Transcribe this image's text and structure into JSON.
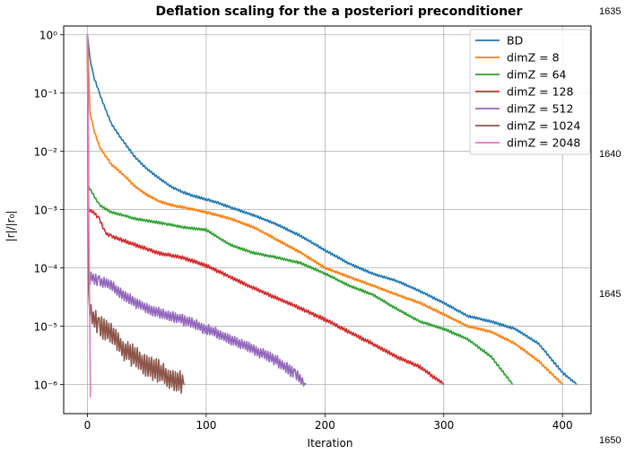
{
  "chart_data": {
    "type": "line",
    "title": "Deflation scaling for the a posteriori preconditioner",
    "xlabel": "Iteration",
    "ylabel": "|r|/|r₀|",
    "xlim": [
      -20,
      424
    ],
    "ylim_log10": [
      -6.5,
      0.15
    ],
    "yscale": "log",
    "xticks": [
      0,
      100,
      200,
      300,
      400
    ],
    "xtick_labels": [
      "0",
      "100",
      "200",
      "300",
      "400"
    ],
    "yticks_exp": [
      0,
      -1,
      -2,
      -3,
      -4,
      -5,
      -6
    ],
    "ytick_labels": [
      "10⁰",
      "10⁻¹",
      "10⁻²",
      "10⁻³",
      "10⁻⁴",
      "10⁻⁵",
      "10⁻⁶"
    ],
    "grid": true,
    "legend_position": "top-right",
    "series": [
      {
        "name": "BD",
        "color": "#1f77b4",
        "points": [
          [
            0,
            1.0
          ],
          [
            2,
            0.4
          ],
          [
            5,
            0.2
          ],
          [
            10,
            0.1
          ],
          [
            20,
            0.03
          ],
          [
            30,
            0.015
          ],
          [
            40,
            0.008
          ],
          [
            50,
            0.005
          ],
          [
            60,
            0.0035
          ],
          [
            70,
            0.0025
          ],
          [
            80,
            0.002
          ],
          [
            90,
            0.0017
          ],
          [
            100,
            0.0015
          ],
          [
            110,
            0.0013
          ],
          [
            120,
            0.0011
          ],
          [
            140,
            0.0008
          ],
          [
            160,
            0.00055
          ],
          [
            180,
            0.00035
          ],
          [
            200,
            0.0002
          ],
          [
            220,
            0.00012
          ],
          [
            240,
            8e-05
          ],
          [
            260,
            6e-05
          ],
          [
            280,
            4e-05
          ],
          [
            300,
            2.5e-05
          ],
          [
            320,
            1.5e-05
          ],
          [
            340,
            1.2e-05
          ],
          [
            360,
            9e-06
          ],
          [
            380,
            5e-06
          ],
          [
            400,
            1.6e-06
          ],
          [
            412,
            1e-06
          ]
        ],
        "noise": 0.02,
        "seed": 1
      },
      {
        "name": "dimZ = 8",
        "color": "#ff7f0e",
        "points": [
          [
            0,
            1.0
          ],
          [
            2,
            0.05
          ],
          [
            5,
            0.025
          ],
          [
            10,
            0.012
          ],
          [
            20,
            0.006
          ],
          [
            30,
            0.004
          ],
          [
            40,
            0.0025
          ],
          [
            50,
            0.0018
          ],
          [
            60,
            0.0014
          ],
          [
            70,
            0.0012
          ],
          [
            80,
            0.0011
          ],
          [
            90,
            0.001
          ],
          [
            100,
            0.0009
          ],
          [
            120,
            0.0007
          ],
          [
            140,
            0.0005
          ],
          [
            160,
            0.0003
          ],
          [
            180,
            0.00018
          ],
          [
            200,
            0.0001
          ],
          [
            220,
            7e-05
          ],
          [
            240,
            5e-05
          ],
          [
            260,
            3.5e-05
          ],
          [
            280,
            2.5e-05
          ],
          [
            300,
            1.6e-05
          ],
          [
            320,
            1e-05
          ],
          [
            340,
            8e-06
          ],
          [
            360,
            5e-06
          ],
          [
            380,
            2.5e-06
          ],
          [
            400,
            1e-06
          ]
        ],
        "noise": 0.02,
        "seed": 2
      },
      {
        "name": "dimZ = 64",
        "color": "#2ca02c",
        "points": [
          [
            0,
            1.0
          ],
          [
            1,
            0.0025
          ],
          [
            5,
            0.0018
          ],
          [
            10,
            0.0012
          ],
          [
            20,
            0.0009
          ],
          [
            30,
            0.0008
          ],
          [
            40,
            0.0007
          ],
          [
            60,
            0.0006
          ],
          [
            80,
            0.0005
          ],
          [
            100,
            0.00045
          ],
          [
            120,
            0.00025
          ],
          [
            140,
            0.00018
          ],
          [
            160,
            0.00015
          ],
          [
            180,
            0.00012
          ],
          [
            200,
            8e-05
          ],
          [
            220,
            5e-05
          ],
          [
            240,
            3.5e-05
          ],
          [
            260,
            2e-05
          ],
          [
            280,
            1.2e-05
          ],
          [
            300,
            9e-06
          ],
          [
            320,
            6e-06
          ],
          [
            340,
            3e-06
          ],
          [
            358,
            1e-06
          ]
        ],
        "noise": 0.02,
        "seed": 3
      },
      {
        "name": "dimZ = 128",
        "color": "#d62728",
        "points": [
          [
            0,
            1.0
          ],
          [
            1,
            0.001
          ],
          [
            5,
            0.0009
          ],
          [
            10,
            0.0007
          ],
          [
            15,
            0.0004
          ],
          [
            20,
            0.00035
          ],
          [
            40,
            0.00025
          ],
          [
            60,
            0.00018
          ],
          [
            80,
            0.00015
          ],
          [
            100,
            0.00011
          ],
          [
            120,
            7e-05
          ],
          [
            140,
            4.5e-05
          ],
          [
            160,
            3e-05
          ],
          [
            180,
            2e-05
          ],
          [
            200,
            1.3e-05
          ],
          [
            220,
            8e-06
          ],
          [
            240,
            5e-06
          ],
          [
            260,
            3e-06
          ],
          [
            280,
            2e-06
          ],
          [
            300,
            1e-06
          ]
        ],
        "noise": 0.03,
        "seed": 4
      },
      {
        "name": "dimZ = 512",
        "color": "#9467bd",
        "points": [
          [
            0,
            1.0
          ],
          [
            1,
            5e-05
          ],
          [
            3,
            7e-05
          ],
          [
            10,
            6e-05
          ],
          [
            20,
            5e-05
          ],
          [
            30,
            3.5e-05
          ],
          [
            40,
            2.5e-05
          ],
          [
            60,
            1.7e-05
          ],
          [
            80,
            1.3e-05
          ],
          [
            100,
            9e-06
          ],
          [
            120,
            6e-06
          ],
          [
            140,
            4e-06
          ],
          [
            160,
            2.5e-06
          ],
          [
            175,
            1.5e-06
          ],
          [
            184,
            1e-06
          ]
        ],
        "noise": 0.09,
        "seed": 5
      },
      {
        "name": "dimZ = 1024",
        "color": "#8c564b",
        "points": [
          [
            0,
            1.0
          ],
          [
            1,
            3e-05
          ],
          [
            3,
            1.5e-05
          ],
          [
            10,
            1e-05
          ],
          [
            20,
            8e-06
          ],
          [
            30,
            4e-06
          ],
          [
            40,
            3e-06
          ],
          [
            50,
            2e-06
          ],
          [
            60,
            1.7e-06
          ],
          [
            70,
            1.3e-06
          ],
          [
            82,
            1e-06
          ]
        ],
        "noise": 0.18,
        "seed": 6
      },
      {
        "name": "dimZ = 2048",
        "color": "#e377c2",
        "points": [
          [
            0,
            1.0
          ],
          [
            1,
            0.001
          ],
          [
            2,
            1e-05
          ],
          [
            2.5,
            6e-07
          ]
        ],
        "noise": 0,
        "seed": 7
      }
    ]
  },
  "margin_numbers": [
    "1635",
    "1640",
    "1645",
    "1650"
  ]
}
